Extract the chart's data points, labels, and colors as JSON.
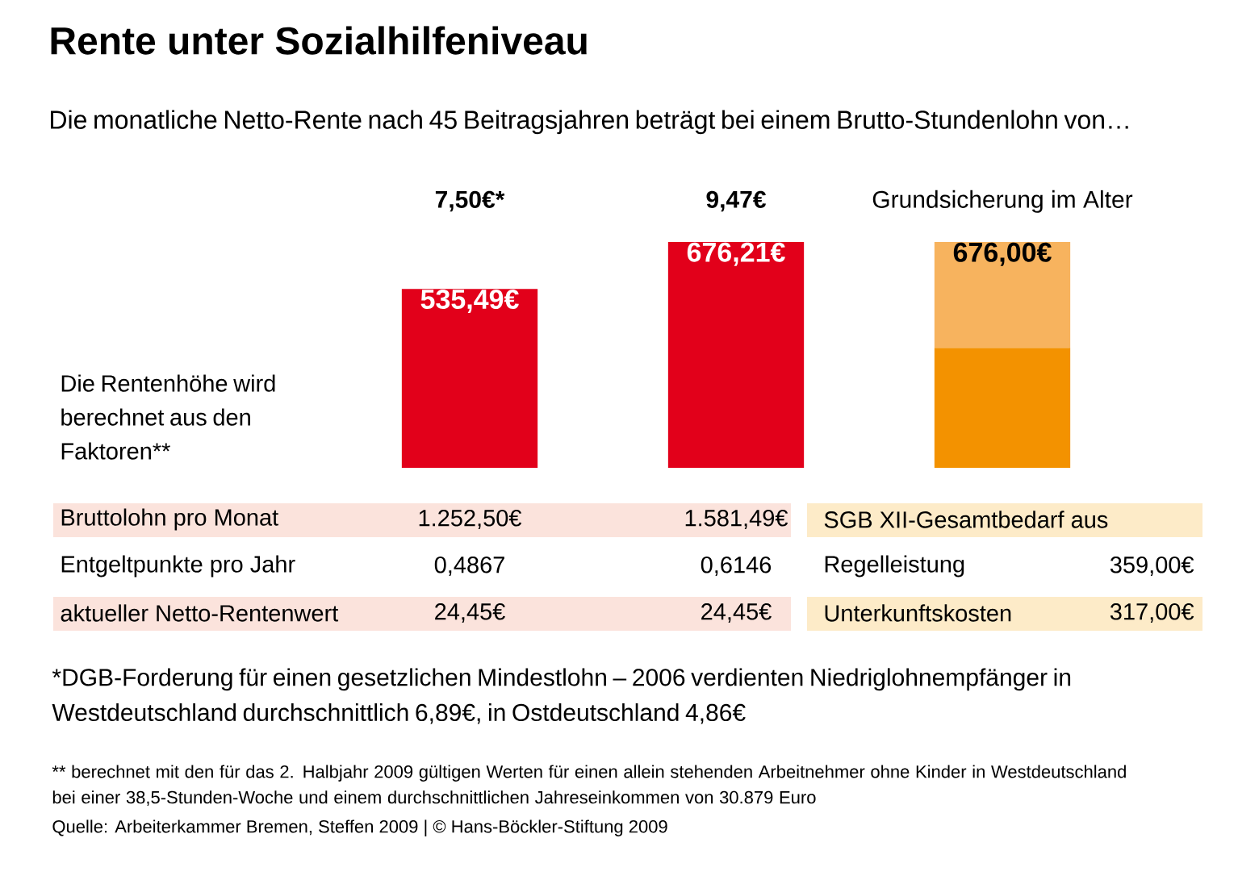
{
  "chart_data": {
    "type": "bar",
    "stacked": true,
    "title": "Rente unter Sozialhilfeniveau",
    "subtitle": "Die monatliche Netto-Rente nach 45 Beitragsjahren beträgt bei einem Brutto-Stundenlohn von…",
    "categories": [
      "7,50€*",
      "9,47€",
      "Grundsicherung im Alter"
    ],
    "series": [
      {
        "color": "#e2001a",
        "values": [
          535.49,
          676.21,
          null
        ],
        "value_labels": [
          "535,49€",
          "676,21€",
          null
        ]
      },
      {
        "color": "#f39200",
        "values": [
          null,
          null,
          359
        ]
      },
      {
        "color": "#f7b35e",
        "values": [
          null,
          null,
          317
        ]
      }
    ],
    "totals": [
      null,
      null,
      "676,00€"
    ],
    "annotations": [
      "Die Rentenhöhe wird berechnet aus den Faktoren**",
      "Bruttolohn pro Monat",
      "1.252,50€",
      "1.581,49€",
      "SGB XII-Gesamtbedarf aus",
      "Entgeltpunkte pro Jahr",
      "0,4867",
      "0,6146",
      "Regelleistung",
      "359,00€",
      "aktueller Netto-Rentenwert",
      "24,45€",
      "24,45€",
      "Unterkunftskosten",
      "317,00€",
      "*DGB-Forderung für einen gesetzlichen Mindestlohn – 2006 verdienten Niedriglohnempfänger in Westdeutschland durchschnittlich 6,89€, in Ostdeutschland 4,86€",
      "** berechnet mit den für das 2. Halbjahr 2009 gültigen Werten für einen allein stehenden Arbeitnehmer ohne Kinder in Westdeutschland bei einer 38,5-Stunden-Woche und einem durchschnittlichen Jahreseinkommen von 30.879 Euro",
      "Quelle: Arbeiterkammer Bremen, Steffen 2009 | © Hans-Böckler-Stiftung 2009"
    ]
  }
}
